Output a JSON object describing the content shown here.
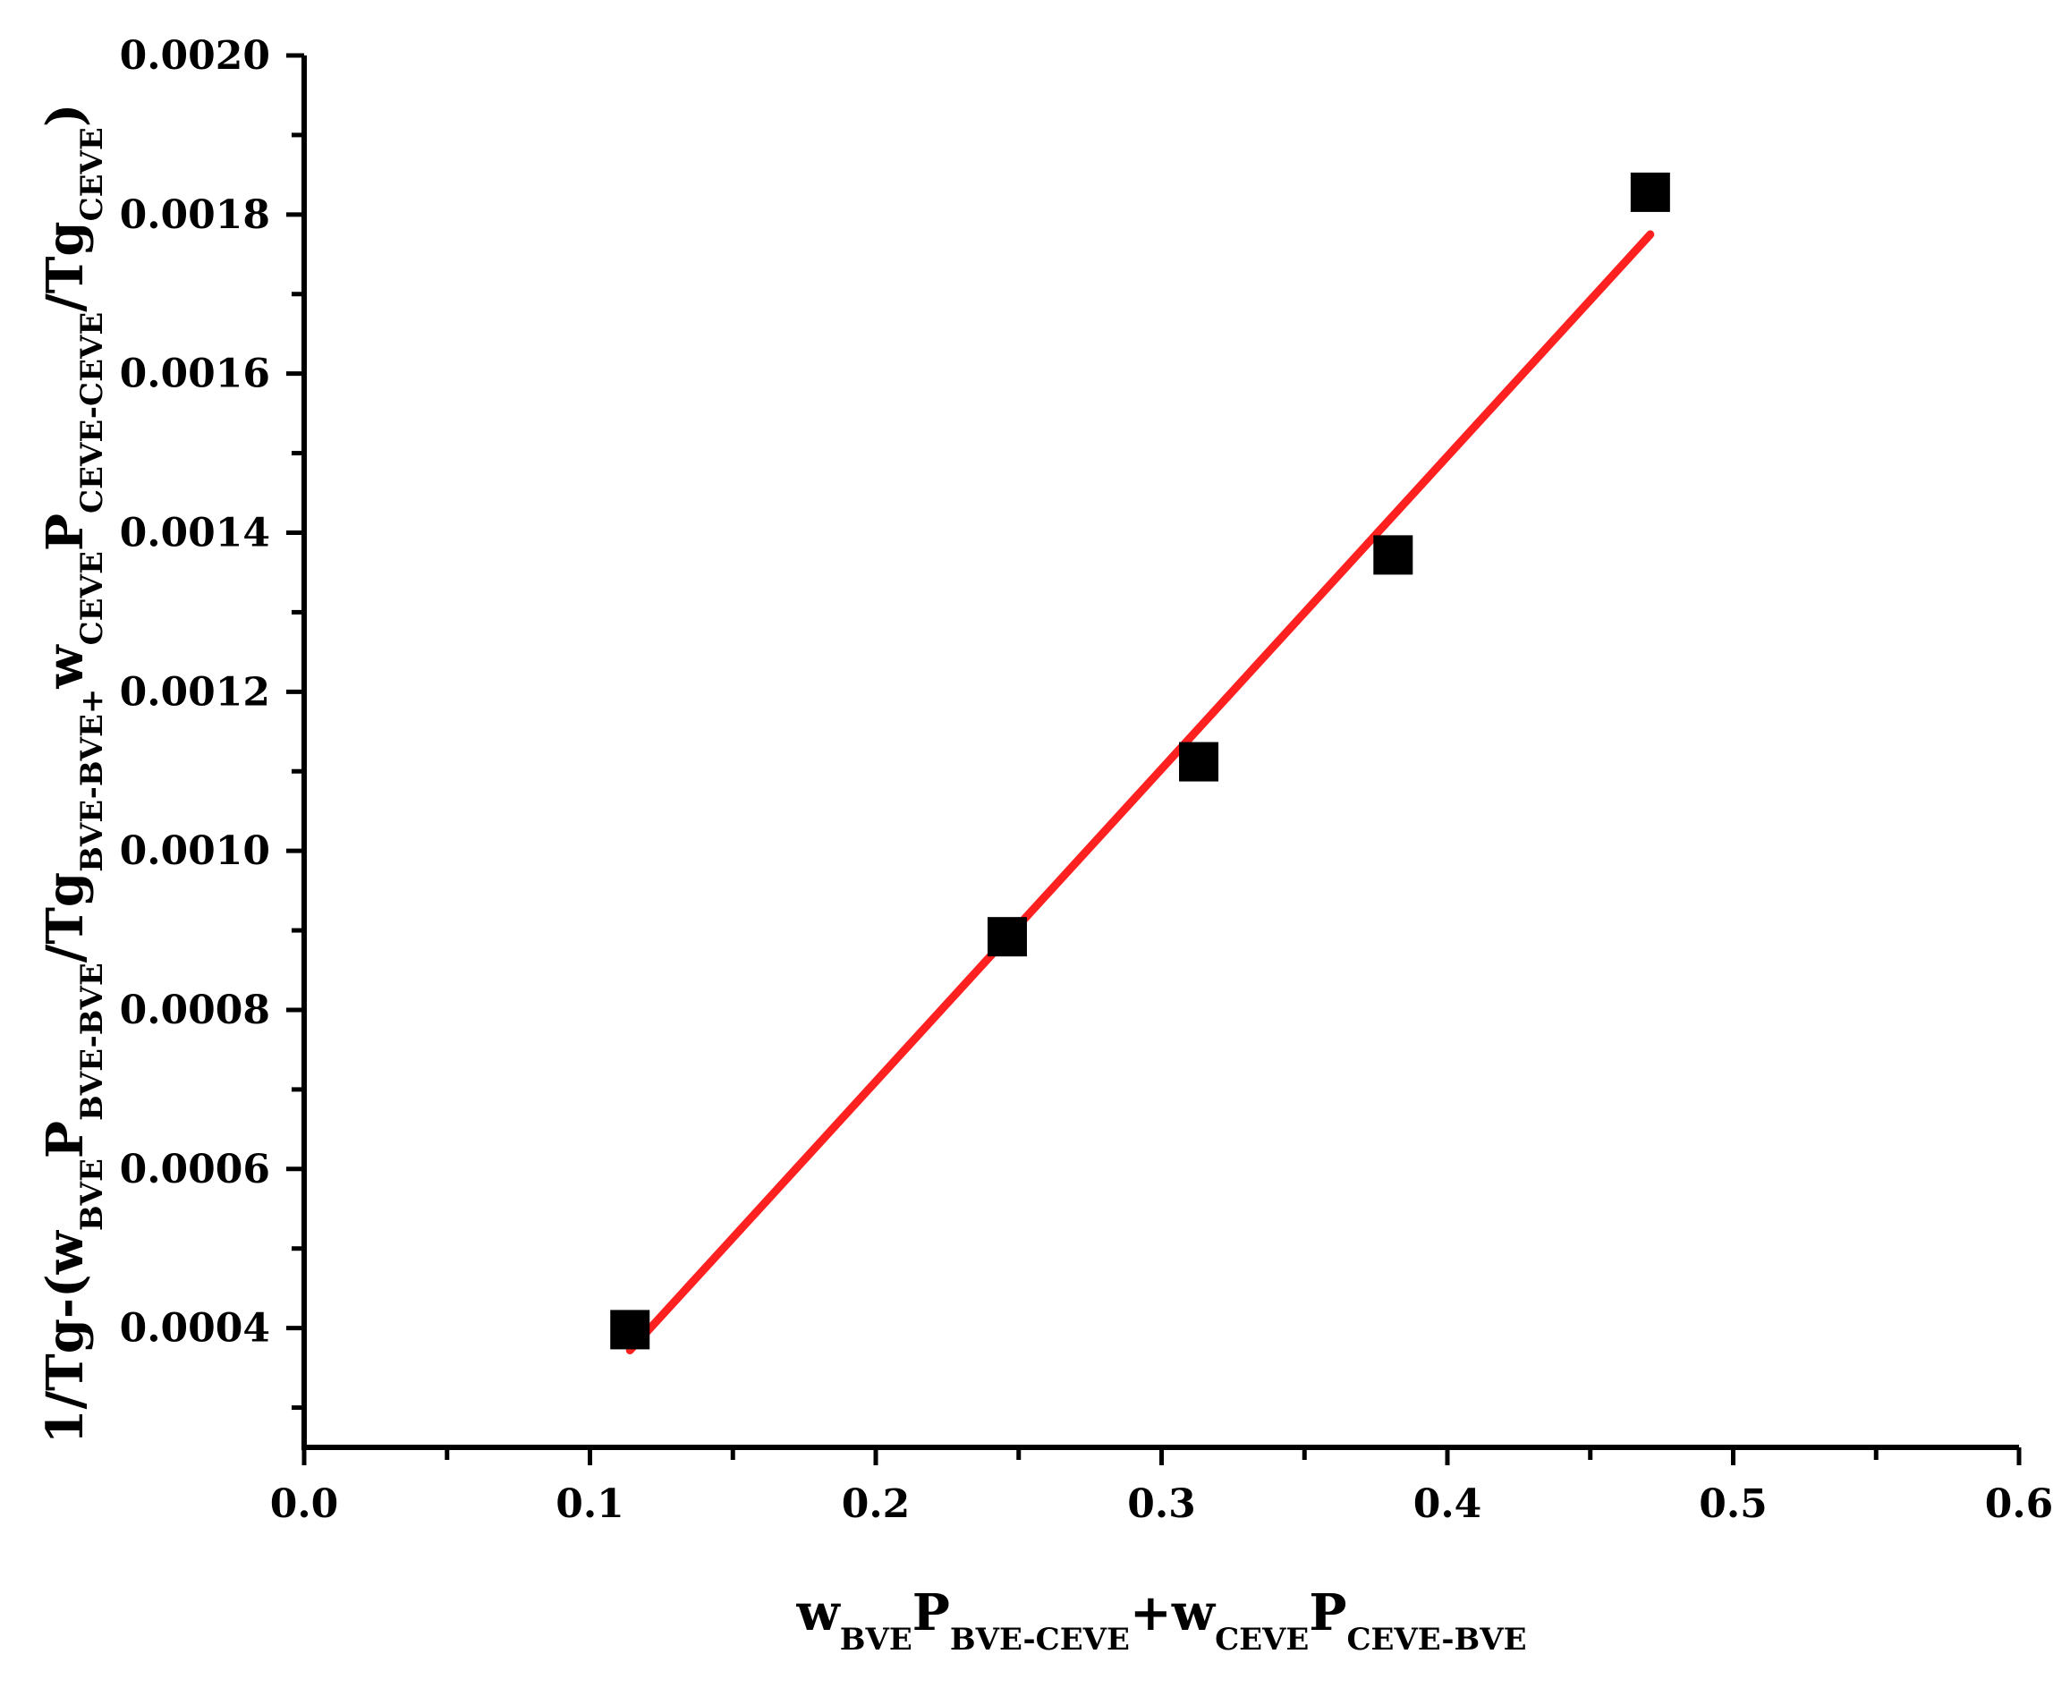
{
  "chart_data": {
    "type": "scatter",
    "title": "",
    "xlim": [
      0.0,
      0.6
    ],
    "ylim": [
      0.00025,
      0.002
    ],
    "x_ticks": [
      0.0,
      0.1,
      0.2,
      0.3,
      0.4,
      0.5,
      0.6
    ],
    "x_tick_labels": [
      "0.0",
      "0.1",
      "0.2",
      "0.3",
      "0.4",
      "0.5",
      "0.6"
    ],
    "x_minor_step": 0.05,
    "y_ticks": [
      0.0004,
      0.0006,
      0.0008,
      0.001,
      0.0012,
      0.0014,
      0.0016,
      0.0018,
      0.002
    ],
    "y_tick_labels": [
      "0.0004",
      "0.0006",
      "0.0008",
      "0.0010",
      "0.0012",
      "0.0014",
      "0.0016",
      "0.0018",
      "0.0020"
    ],
    "y_minor_step": 0.0001,
    "grid": false,
    "legend": "none",
    "xlabel_parts": [
      {
        "t": "w",
        "sub": false
      },
      {
        "t": "BVE",
        "sub": true
      },
      {
        "t": "P",
        "sub": false
      },
      {
        "t": "BVE-CEVE",
        "sub": true
      },
      {
        "t": "+w",
        "sub": false
      },
      {
        "t": "CEVE",
        "sub": true
      },
      {
        "t": "P",
        "sub": false
      },
      {
        "t": "CEVE-BVE",
        "sub": true
      }
    ],
    "ylabel_parts": [
      {
        "t": "1/Tg-(w",
        "sub": false
      },
      {
        "t": "BVE",
        "sub": true
      },
      {
        "t": "P",
        "sub": false
      },
      {
        "t": "BVE-BVE",
        "sub": true
      },
      {
        "t": "/Tg",
        "sub": false
      },
      {
        "t": "BVE-BVE+",
        "sub": true
      },
      {
        "t": "w",
        "sub": false
      },
      {
        "t": "CEVE",
        "sub": true
      },
      {
        "t": "P",
        "sub": false
      },
      {
        "t": "CEVE-CEVE",
        "sub": true
      },
      {
        "t": "/Tg",
        "sub": false
      },
      {
        "t": "CEVE",
        "sub": true
      },
      {
        "t": ")",
        "sub": false
      }
    ],
    "series": [
      {
        "type": "scatter",
        "marker": "square",
        "color": "#000000",
        "x": [
          0.114,
          0.246,
          0.313,
          0.381,
          0.471
        ],
        "y": [
          0.000398,
          0.000892,
          0.001112,
          0.001372,
          0.001828
        ]
      },
      {
        "type": "line",
        "color": "#ff2020",
        "x": [
          0.114,
          0.471
        ],
        "y": [
          0.000372,
          0.001775
        ]
      }
    ]
  }
}
